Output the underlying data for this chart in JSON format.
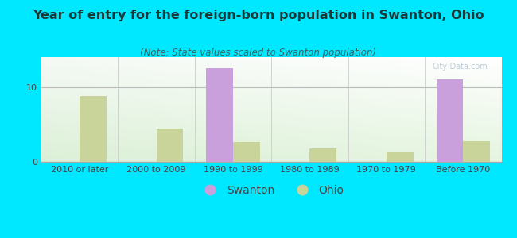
{
  "title": "Year of entry for the foreign-born population in Swanton, Ohio",
  "subtitle": "(Note: State values scaled to Swanton population)",
  "categories": [
    "2010 or later",
    "2000 to 2009",
    "1990 to 1999",
    "1980 to 1989",
    "1970 to 1979",
    "Before 1970"
  ],
  "swanton_values": [
    0,
    0,
    12.5,
    0,
    0,
    11.0
  ],
  "ohio_values": [
    8.8,
    4.5,
    2.7,
    1.8,
    1.3,
    2.8
  ],
  "swanton_color": "#c9a0dc",
  "ohio_color": "#c8d49a",
  "background_outer": "#00e8ff",
  "ylim": [
    0,
    14
  ],
  "yticks": [
    0,
    10
  ],
  "bar_width": 0.35,
  "legend_labels": [
    "Swanton",
    "Ohio"
  ],
  "title_fontsize": 11.5,
  "subtitle_fontsize": 8.5,
  "tick_fontsize": 8,
  "legend_fontsize": 10
}
